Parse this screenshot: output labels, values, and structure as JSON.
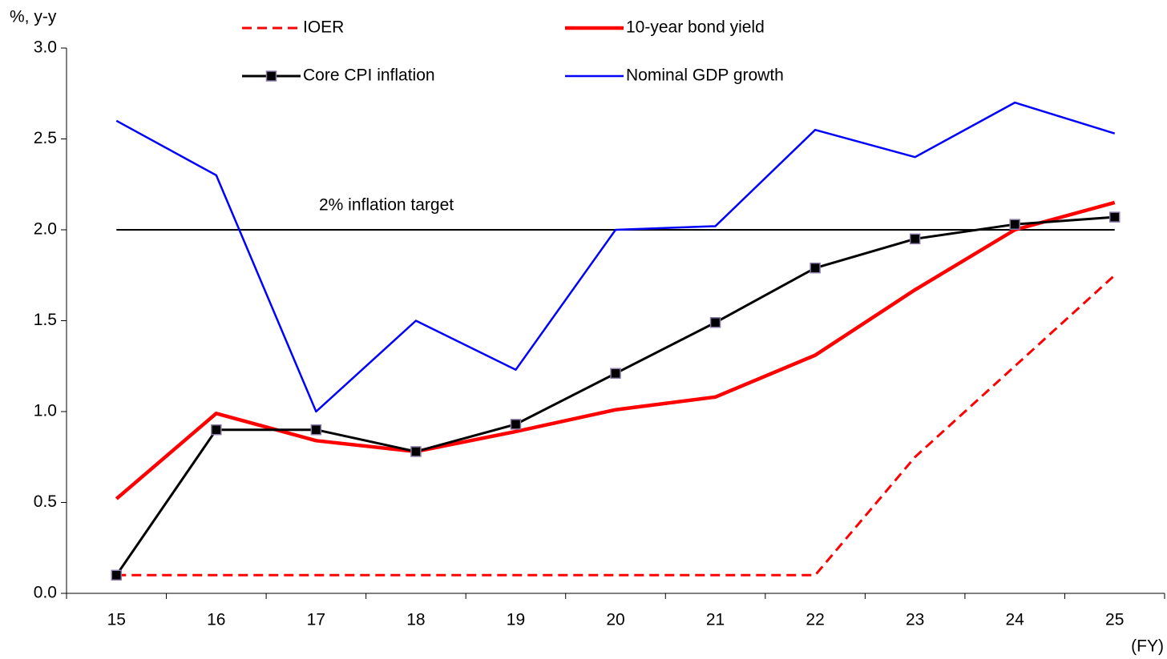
{
  "chart_data": {
    "type": "line",
    "y_label": "%, y-y",
    "x_label": "(FY)",
    "categories": [
      "15",
      "16",
      "17",
      "18",
      "19",
      "20",
      "21",
      "22",
      "23",
      "24",
      "25"
    ],
    "series": [
      {
        "name": "IOER",
        "color": "#ff0000",
        "line_style": "dashed",
        "values": [
          0.1,
          0.1,
          0.1,
          0.1,
          0.1,
          0.1,
          0.1,
          0.1,
          0.75,
          1.25,
          1.75
        ]
      },
      {
        "name": "10-year bond yield",
        "color": "#ff0000",
        "line_style": "solid",
        "values": [
          0.52,
          0.99,
          0.84,
          0.78,
          0.89,
          1.01,
          1.08,
          1.31,
          1.67,
          2.0,
          2.15
        ]
      },
      {
        "name": "Core CPI inflation",
        "color": "#000000",
        "line_style": "solid",
        "marker": "square",
        "values": [
          0.1,
          0.9,
          0.9,
          0.78,
          0.93,
          1.21,
          1.49,
          1.79,
          1.95,
          2.03,
          2.07
        ]
      },
      {
        "name": "Nominal GDP growth",
        "color": "#0000ff",
        "line_style": "solid",
        "values": [
          2.6,
          2.3,
          1.0,
          1.5,
          1.23,
          2.0,
          2.02,
          2.55,
          2.4,
          2.7,
          2.53
        ]
      }
    ],
    "reference_line": {
      "value": 2,
      "label": "2% inflation target"
    },
    "ylim": [
      0,
      3
    ],
    "yticks": [
      {
        "value": 0,
        "label": "0.0"
      },
      0.5,
      {
        "value": 1,
        "label": "1.0"
      },
      1.5,
      {
        "value": 2,
        "label": "2.0"
      },
      2.5,
      {
        "value": 3,
        "label": "3.0"
      }
    ],
    "grid": false
  }
}
